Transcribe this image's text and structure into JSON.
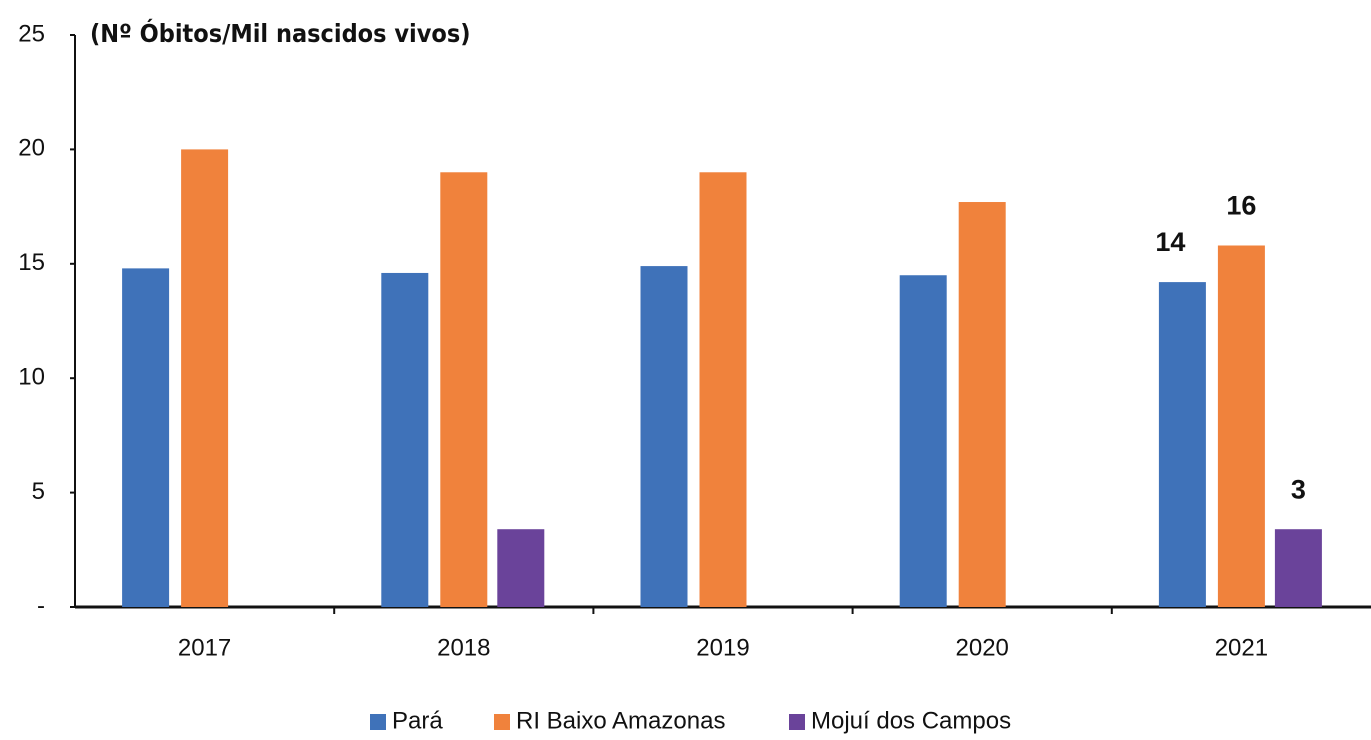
{
  "chart_data": {
    "type": "bar",
    "title": "(Nº Óbitos/Mil nascidos vivos)",
    "categories": [
      "2017",
      "2018",
      "2019",
      "2020",
      "2021"
    ],
    "series": [
      {
        "name": "Pará",
        "color": "#3f72b9",
        "values": [
          14.8,
          14.6,
          14.9,
          14.5,
          14.2
        ],
        "value_labels": [
          null,
          null,
          null,
          null,
          "14"
        ]
      },
      {
        "name": "RI Baixo Amazonas",
        "color": "#f0823c",
        "values": [
          20.0,
          19.0,
          19.0,
          17.7,
          15.8
        ],
        "value_labels": [
          null,
          null,
          null,
          null,
          "16"
        ]
      },
      {
        "name": "Mojuí dos Campos",
        "color": "#6a439a",
        "values": [
          null,
          3.4,
          null,
          null,
          3.4
        ],
        "value_labels": [
          null,
          null,
          null,
          null,
          "3"
        ]
      }
    ],
    "ylim": [
      0,
      25
    ],
    "yticks": [
      {
        "value": 0,
        "label": "-"
      },
      5,
      10,
      15,
      20,
      25
    ],
    "grid": false,
    "legend": "bottom"
  }
}
